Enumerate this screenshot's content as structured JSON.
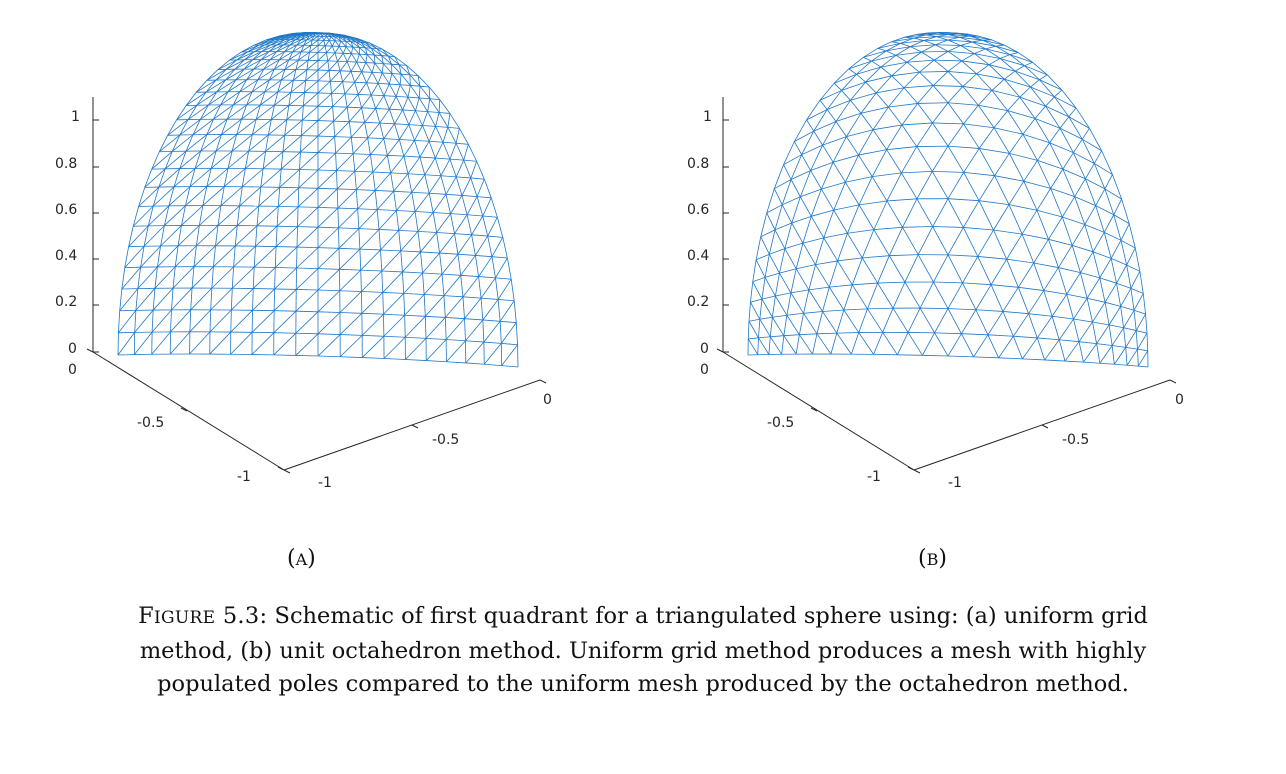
{
  "mesh_color": "#1f77c8",
  "axis_color": "#262626",
  "panels": [
    {
      "name": "a",
      "label_open": "(",
      "label_text": "A",
      "label_close": ")",
      "mesh": "uniform-grid",
      "z_ticks": [
        "0",
        "0.2",
        "0.4",
        "0.6",
        "0.8",
        "1"
      ],
      "x_ticks": [
        "0",
        "-0.5",
        "-1"
      ],
      "y_ticks": [
        "-1",
        "-0.5",
        "0"
      ]
    },
    {
      "name": "b",
      "label_open": "(",
      "label_text": "B",
      "label_close": ")",
      "mesh": "octahedron",
      "z_ticks": [
        "0",
        "0.2",
        "0.4",
        "0.6",
        "0.8",
        "1"
      ],
      "x_ticks": [
        "0",
        "-0.5",
        "-1"
      ],
      "y_ticks": [
        "-1",
        "-0.5",
        "0"
      ]
    }
  ],
  "caption": {
    "label_first": "F",
    "label_rest": "IGURE",
    "number": "5.3:",
    "text": "Schematic of first quadrant for a triangulated sphere using: (a) uniform grid method, (b) unit octahedron method. Uniform grid method produces a mesh with highly populated poles compared to the uniform mesh produced by the octahedron method."
  }
}
